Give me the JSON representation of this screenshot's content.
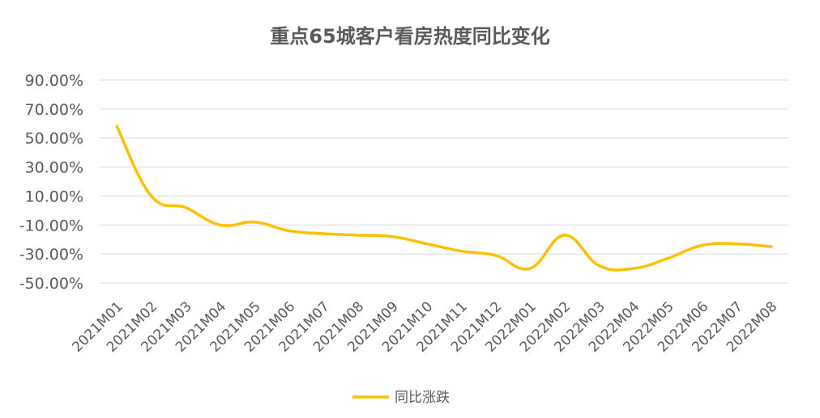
{
  "chart_data": {
    "type": "line",
    "title": "重点65城客户看房热度同比变化",
    "categories": [
      "2021M01",
      "2021M02",
      "2021M03",
      "2021M04",
      "2021M05",
      "2021M06",
      "2021M07",
      "2021M08",
      "2021M09",
      "2021M10",
      "2021M11",
      "2021M12",
      "2022M01",
      "2022M02",
      "2022M03",
      "2022M04",
      "2022M05",
      "2022M06",
      "2022M07",
      "2022M08"
    ],
    "series": [
      {
        "name": "同比涨跌",
        "color": "#FFC000",
        "values": [
          58,
          10,
          2,
          -10,
          -8,
          -14,
          -16,
          -17,
          -18,
          -23,
          -28,
          -31,
          -40,
          -17,
          -38,
          -40,
          -33,
          -24,
          -23,
          -25
        ]
      }
    ],
    "ylim": [
      -50,
      90
    ],
    "yticks": [
      90,
      70,
      50,
      30,
      10,
      -10,
      -30,
      -50
    ],
    "ytick_labels": [
      "90.00%",
      "70.00%",
      "50.00%",
      "30.00%",
      "10.00%",
      "-10.00%",
      "-30.00%",
      "-50.00%"
    ],
    "xlabel": "",
    "ylabel": "",
    "grid": true,
    "legend_position": "bottom"
  }
}
